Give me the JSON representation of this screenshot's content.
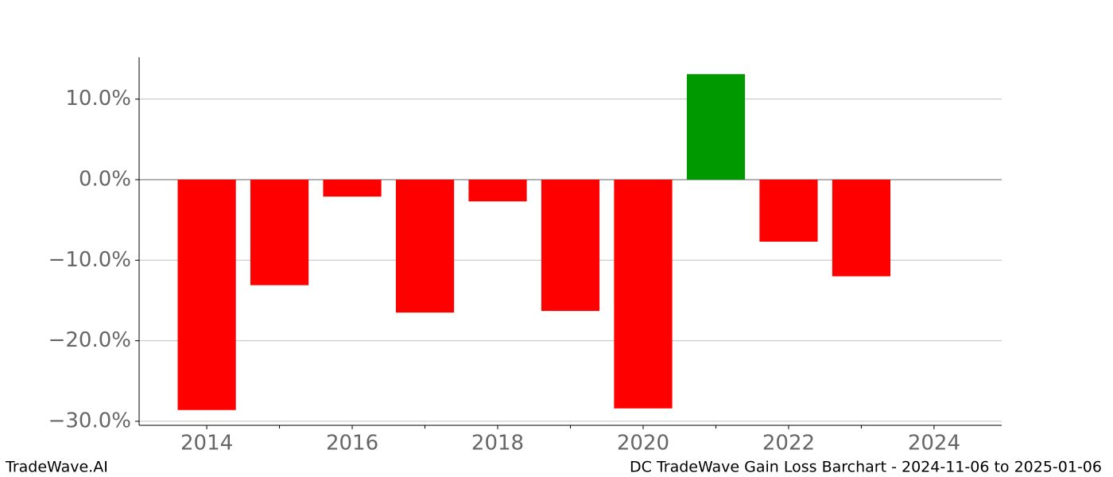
{
  "chart_data": {
    "type": "bar",
    "x": [
      2014,
      2015,
      2016,
      2017,
      2018,
      2019,
      2020,
      2021,
      2022,
      2023
    ],
    "values": [
      -28.6,
      -13.1,
      -2.1,
      -16.5,
      -2.7,
      -16.3,
      -28.4,
      13.1,
      -7.7,
      -12.0
    ],
    "positive_color": "#009900",
    "negative_color": "#ff0000",
    "xlim": [
      2013.07,
      2024.93
    ],
    "xticks": [
      2014,
      2016,
      2018,
      2020,
      2022,
      2024
    ],
    "xminor_ticks": [
      2015,
      2017,
      2019,
      2021,
      2023
    ],
    "ylim": [
      -30.5,
      15.2
    ],
    "yticks": [
      {
        "value": -30,
        "label": "−30.0%"
      },
      {
        "value": -20,
        "label": "−20.0%"
      },
      {
        "value": -10,
        "label": "−10.0%"
      },
      {
        "value": 0,
        "label": "0.0%"
      },
      {
        "value": 10,
        "label": "10.0%"
      }
    ],
    "grid": true,
    "footer_left": "TradeWave.AI",
    "footer_right": "DC TradeWave Gain Loss Barchart - 2024-11-06 to 2025-01-06"
  }
}
